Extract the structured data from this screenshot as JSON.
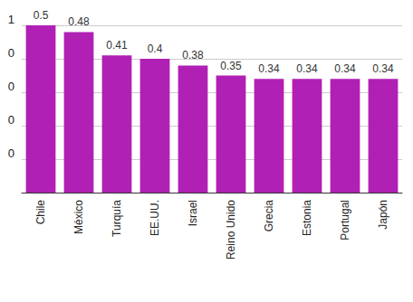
{
  "chart_data": {
    "type": "bar",
    "categories": [
      "Chile",
      "México",
      "Turquía",
      "EE.UU.",
      "Israel",
      "Reino Unido",
      "Grecia",
      "Estonia",
      "Portugal",
      "Japón"
    ],
    "values": [
      0.5,
      0.48,
      0.41,
      0.4,
      0.38,
      0.35,
      0.34,
      0.34,
      0.34,
      0.34
    ],
    "color": "#b120b4",
    "ylim": [
      0,
      0.5
    ],
    "yticks": [
      {
        "value": 0.1,
        "label": "0"
      },
      {
        "value": 0.2,
        "label": "0"
      },
      {
        "value": 0.3,
        "label": "0"
      },
      {
        "value": 0.4,
        "label": "0"
      },
      {
        "value": 0.5,
        "label": "1"
      }
    ],
    "grid": true,
    "data_labels": true
  }
}
